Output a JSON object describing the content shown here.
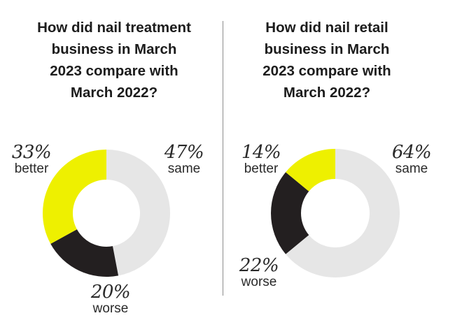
{
  "chart_data": [
    {
      "type": "pie",
      "title": "How did nail treatment business in March 2023 compare with March 2022?",
      "title_lines": [
        "How did nail treatment",
        "business in March",
        "2023 compare with",
        "March 2022?"
      ],
      "slices": [
        {
          "label": "better",
          "value": 33,
          "text": "33%",
          "color": "#eef000"
        },
        {
          "label": "worse",
          "value": 20,
          "text": "20%",
          "color": "#231f20"
        },
        {
          "label": "same",
          "value": 47,
          "text": "47%",
          "color": "#e6e6e6"
        }
      ]
    },
    {
      "type": "pie",
      "title": "How did nail retail business in March 2023 compare with March 2022?",
      "title_lines": [
        "How did nail retail",
        "business in March",
        "2023 compare with",
        "March 2022?"
      ],
      "slices": [
        {
          "label": "better",
          "value": 14,
          "text": "14%",
          "color": "#eef000"
        },
        {
          "label": "worse",
          "value": 22,
          "text": "22%",
          "color": "#231f20"
        },
        {
          "label": "same",
          "value": 64,
          "text": "64%",
          "color": "#e6e6e6"
        }
      ]
    }
  ]
}
